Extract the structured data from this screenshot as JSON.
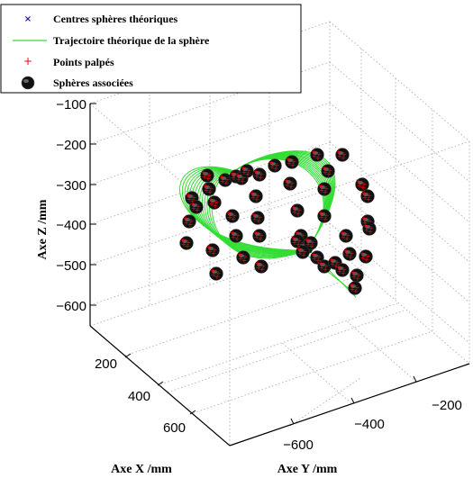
{
  "chart_data": {
    "type": "scatter",
    "title": "",
    "xlabel": "Axe X /mm",
    "ylabel": "Axe Y /mm",
    "zlabel": "Axe Z /mm",
    "x_ticks": [
      "200",
      "400",
      "600"
    ],
    "y_ticks": [
      "−200",
      "−400",
      "−600"
    ],
    "z_ticks": [
      "−100",
      "−200",
      "−300",
      "−400",
      "−500",
      "−600"
    ],
    "grid": true,
    "legend_position": "top-left",
    "legend": [
      {
        "label": "Centres sphères théoriques",
        "marker": "x",
        "color": "#1a1a9c"
      },
      {
        "label": "Trajectoire théorique de la sphère",
        "marker": "line",
        "color": "#33dd33"
      },
      {
        "label": "Points palpés",
        "marker": "+",
        "color": "#ff0000"
      },
      {
        "label": "Sphères associées",
        "marker": "sphere",
        "color": "#111111"
      }
    ],
    "series": [
      {
        "name": "Sphères associées",
        "z_values": [
          -480,
          -360,
          -200,
          -300,
          -450
        ]
      }
    ],
    "colors": {
      "trajectory": "#33dd33",
      "points": "#ff0000",
      "spheres": "#111111",
      "grid": "#b8b8b8"
    }
  }
}
